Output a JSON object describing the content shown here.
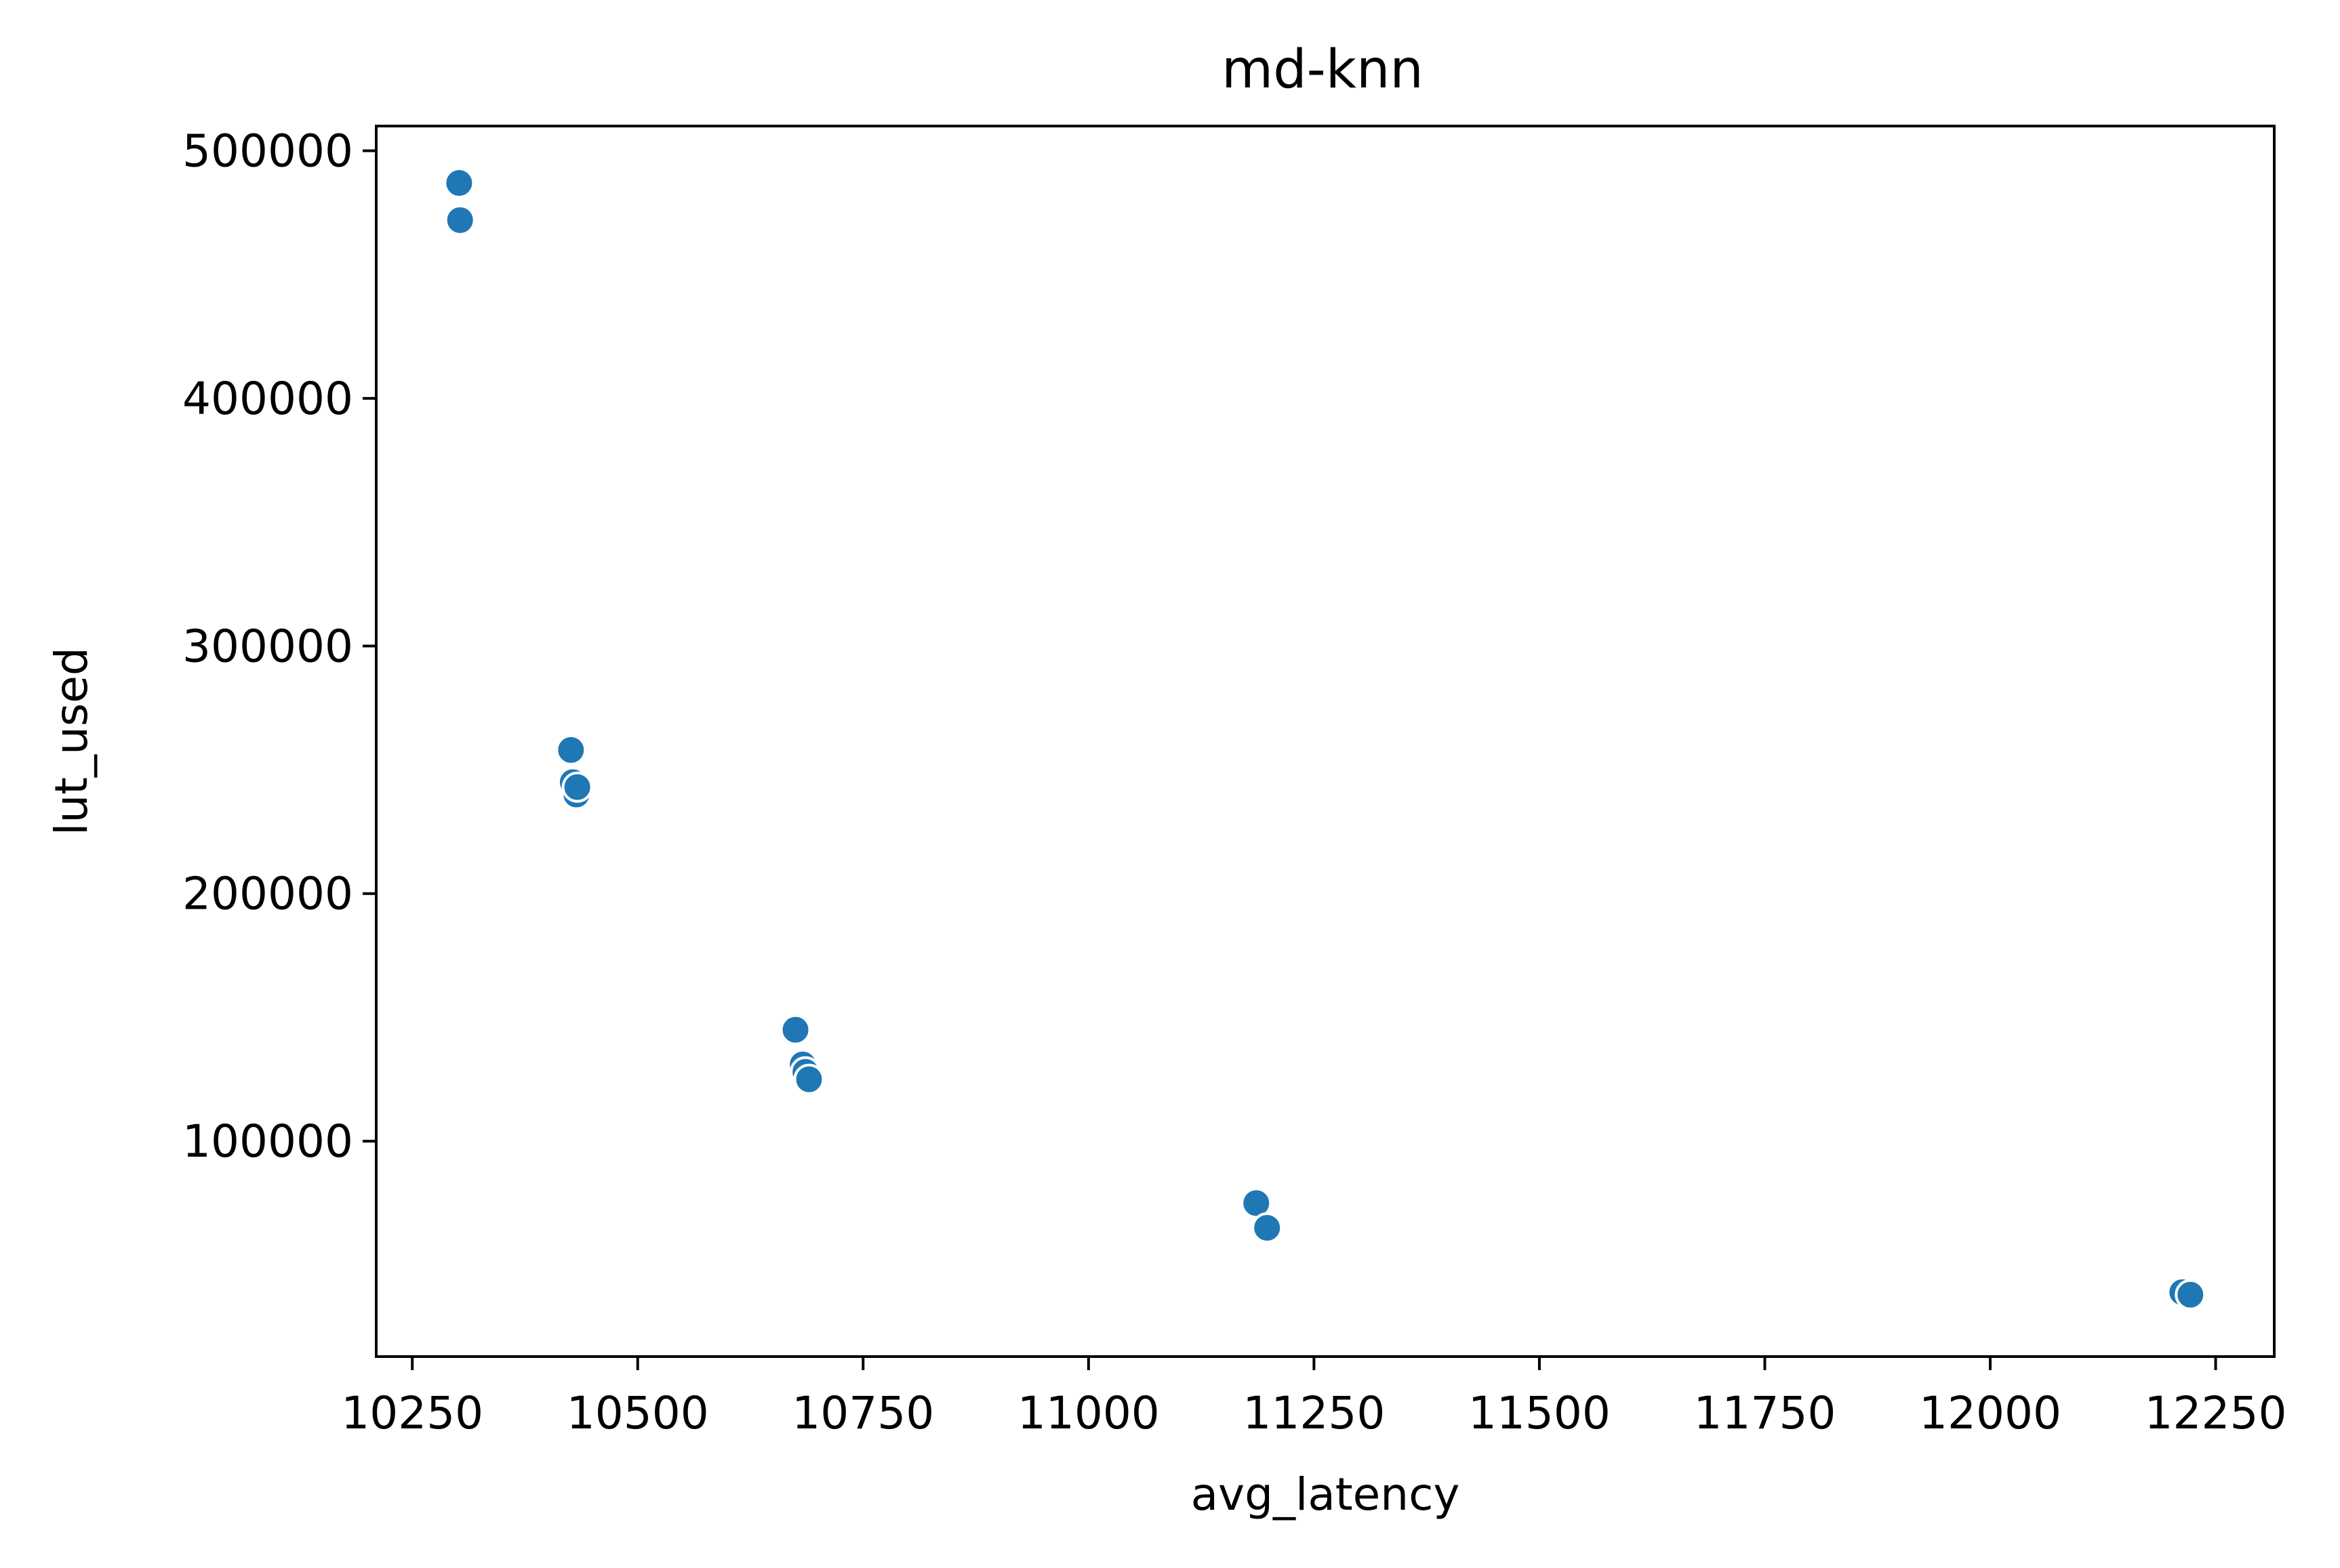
{
  "chart_data": {
    "type": "scatter",
    "title": "md-knn",
    "xlabel": "avg_latency",
    "ylabel": "lut_used",
    "xlim": [
      10210,
      12315
    ],
    "ylim": [
      13000,
      510000
    ],
    "xticks": [
      10250,
      10500,
      10750,
      11000,
      11250,
      11500,
      11750,
      12000,
      12250
    ],
    "yticks": [
      100000,
      200000,
      300000,
      400000,
      500000
    ],
    "grid": false,
    "marker_color": "#1f77b4",
    "points": [
      {
        "x": 10302,
        "y": 487000
      },
      {
        "x": 10303,
        "y": 472000
      },
      {
        "x": 10426,
        "y": 258000
      },
      {
        "x": 10428,
        "y": 245000
      },
      {
        "x": 10432,
        "y": 240000
      },
      {
        "x": 10433,
        "y": 243000
      },
      {
        "x": 10675,
        "y": 145000
      },
      {
        "x": 10683,
        "y": 131000
      },
      {
        "x": 10686,
        "y": 128000
      },
      {
        "x": 10690,
        "y": 125000
      },
      {
        "x": 11186,
        "y": 75000
      },
      {
        "x": 11198,
        "y": 65000
      },
      {
        "x": 12213,
        "y": 39000
      },
      {
        "x": 12222,
        "y": 38000
      }
    ]
  }
}
